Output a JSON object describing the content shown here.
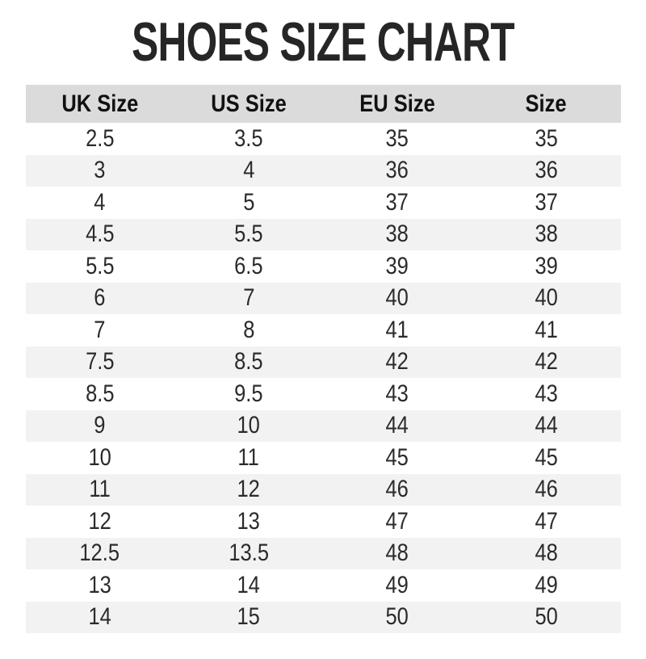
{
  "page": {
    "title": "SHOES SIZE CHART"
  },
  "colors": {
    "title": "#262626",
    "header_bg": "#dbdbdb",
    "header_text": "#111111",
    "row_alt_bg": "#f2f2f2",
    "cell_text": "#2b2b2b",
    "background": "#ffffff"
  },
  "chart_data": {
    "type": "table",
    "title": "SHOES SIZE CHART",
    "columns": [
      "UK Size",
      "US Size",
      "EU Size",
      "Size"
    ],
    "rows": [
      [
        "2.5",
        "3.5",
        "35",
        "35"
      ],
      [
        "3",
        "4",
        "36",
        "36"
      ],
      [
        "4",
        "5",
        "37",
        "37"
      ],
      [
        "4.5",
        "5.5",
        "38",
        "38"
      ],
      [
        "5.5",
        "6.5",
        "39",
        "39"
      ],
      [
        "6",
        "7",
        "40",
        "40"
      ],
      [
        "7",
        "8",
        "41",
        "41"
      ],
      [
        "7.5",
        "8.5",
        "42",
        "42"
      ],
      [
        "8.5",
        "9.5",
        "43",
        "43"
      ],
      [
        "9",
        "10",
        "44",
        "44"
      ],
      [
        "10",
        "11",
        "45",
        "45"
      ],
      [
        "11",
        "12",
        "46",
        "46"
      ],
      [
        "12",
        "13",
        "47",
        "47"
      ],
      [
        "12.5",
        "13.5",
        "48",
        "48"
      ],
      [
        "13",
        "14",
        "49",
        "49"
      ],
      [
        "14",
        "15",
        "50",
        "50"
      ]
    ],
    "layout": {
      "legend": "none",
      "grid": "row-stripes",
      "header_position": "top"
    }
  }
}
